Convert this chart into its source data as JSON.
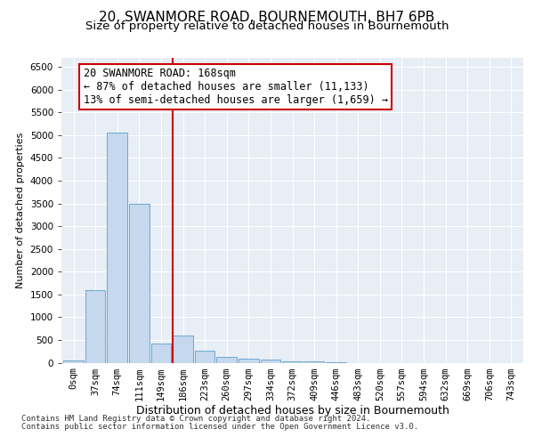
{
  "title": "20, SWANMORE ROAD, BOURNEMOUTH, BH7 6PB",
  "subtitle": "Size of property relative to detached houses in Bournemouth",
  "xlabel": "Distribution of detached houses by size in Bournemouth",
  "ylabel": "Number of detached properties",
  "footer1": "Contains HM Land Registry data © Crown copyright and database right 2024.",
  "footer2": "Contains public sector information licensed under the Open Government Licence v3.0.",
  "bar_labels": [
    "0sqm",
    "37sqm",
    "74sqm",
    "111sqm",
    "149sqm",
    "186sqm",
    "223sqm",
    "260sqm",
    "297sqm",
    "334sqm",
    "372sqm",
    "409sqm",
    "446sqm",
    "483sqm",
    "520sqm",
    "557sqm",
    "594sqm",
    "632sqm",
    "669sqm",
    "706sqm",
    "743sqm"
  ],
  "bar_values": [
    50,
    1600,
    5050,
    3500,
    420,
    600,
    270,
    130,
    95,
    65,
    30,
    20,
    5,
    0,
    0,
    0,
    0,
    0,
    0,
    0,
    0
  ],
  "bar_color": "#c5d8ed",
  "bar_edge_color": "#6fa8d0",
  "vline_color": "#cc0000",
  "annotation_text": "20 SWANMORE ROAD: 168sqm\n← 87% of detached houses are smaller (11,133)\n13% of semi-detached houses are larger (1,659) →",
  "box_color": "#ffffff",
  "box_edge_color": "#cc0000",
  "ylim": [
    0,
    6700
  ],
  "yticks": [
    0,
    500,
    1000,
    1500,
    2000,
    2500,
    3000,
    3500,
    4000,
    4500,
    5000,
    5500,
    6000,
    6500
  ],
  "bg_color": "#e8eef5",
  "fig_bg_color": "#ffffff",
  "title_fontsize": 11,
  "subtitle_fontsize": 9.5,
  "xlabel_fontsize": 9,
  "ylabel_fontsize": 8,
  "tick_fontsize": 7.5,
  "annotation_fontsize": 8.5,
  "footer_fontsize": 6.5
}
